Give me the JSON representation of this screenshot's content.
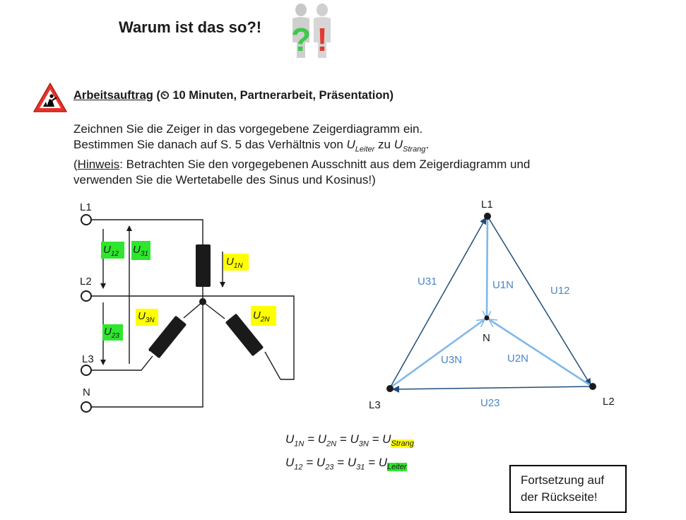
{
  "header": {
    "title": "Warum ist das so?!"
  },
  "task": {
    "heading_label": "Arbeitsauftrag",
    "heading_meta": " (⏲ 10 Minuten, Partnerarbeit, Präsentation)",
    "line1": "Zeichnen Sie die Zeiger in das vorgegebene Zeigerdiagramm ein.",
    "line2_pre": "Bestimmen Sie danach auf S. 5 das Verhältnis von ",
    "u_leiter_u": "U",
    "u_leiter_sub": "Leiter",
    "line2_mid": " zu ",
    "u_strang_u": "U",
    "u_strang_sub": "Strang",
    "line2_end": ".",
    "hint_open": "(",
    "hint_label": "Hinweis",
    "hint_text": ": Betrachten Sie den vorgegebenen Ausschnitt aus dem Zeigerdiagramm und",
    "line4": "verwenden Sie die Wertetabelle des Sinus und Kosinus!)"
  },
  "circuit": {
    "terminals": [
      "L1",
      "L2",
      "L3",
      "N"
    ],
    "voltages": [
      {
        "u": "U",
        "sub": "12",
        "highlight": "#2ee62e"
      },
      {
        "u": "U",
        "sub": "31",
        "highlight": "#2ee62e"
      },
      {
        "u": "U",
        "sub": "23",
        "highlight": "#2ee62e"
      },
      {
        "u": "U",
        "sub": "1N",
        "highlight": "#ffff00"
      },
      {
        "u": "U",
        "sub": "2N",
        "highlight": "#ffff00"
      },
      {
        "u": "U",
        "sub": "3N",
        "highlight": "#ffff00"
      }
    ]
  },
  "phasor": {
    "nodes": [
      "L1",
      "L2",
      "L3",
      "N"
    ],
    "labels": [
      "U31",
      "U1N",
      "U12",
      "U3N",
      "U2N",
      "U23"
    ],
    "colors": {
      "leiter": "#1f4e79",
      "strang": "#7fb8ec",
      "label": "#4a86c8"
    }
  },
  "equations": {
    "eq1": {
      "parts": [
        [
          "U",
          "1N"
        ],
        [
          "U",
          "2N"
        ],
        [
          "U",
          "3N"
        ]
      ],
      "rhs_u": "U",
      "rhs_sub": "Strang"
    },
    "eq2": {
      "parts": [
        [
          "U",
          "12"
        ],
        [
          "U",
          "23"
        ],
        [
          "U",
          "31"
        ]
      ],
      "rhs_u": "U",
      "rhs_sub": "Leiter"
    },
    "eq_sign": " = "
  },
  "continue_note": {
    "line1": "Fortsetzung auf",
    "line2": "der Rückseite!"
  },
  "icons": [
    "two-people-question-icon",
    "construction-warning-icon"
  ]
}
